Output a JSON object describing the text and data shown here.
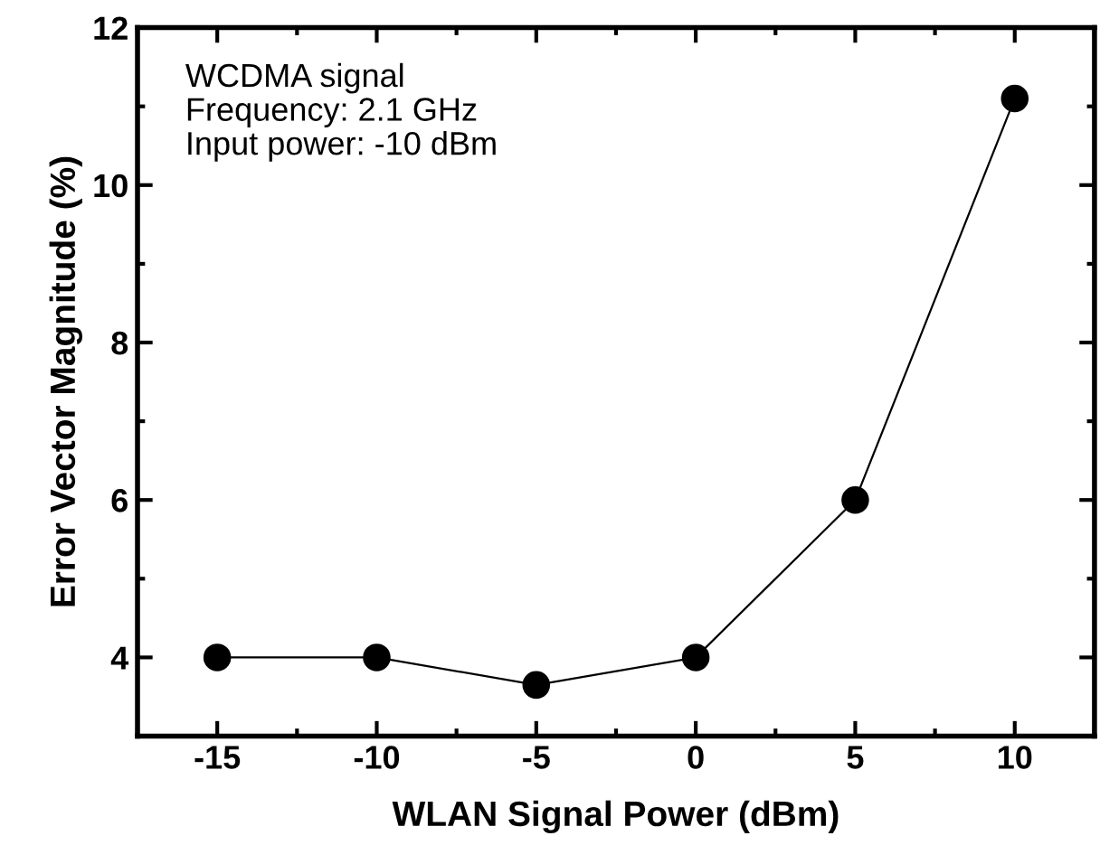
{
  "chart_data": {
    "type": "line",
    "xlabel": "WLAN Signal Power (dBm)",
    "ylabel": "Error Vector Magnitude (%)",
    "x": [
      -15,
      -10,
      -5,
      0,
      5,
      10
    ],
    "series": [
      {
        "color": "#000000",
        "values": [
          4,
          4,
          3.65,
          4,
          6,
          11.1
        ]
      }
    ],
    "marker": "circle",
    "line_style": "solid",
    "xlim": [
      -17.5,
      12.5
    ],
    "xticks": [
      -15,
      -10,
      -5,
      0,
      5,
      10
    ],
    "ylim": [
      3,
      12
    ],
    "yticks": [
      4,
      6,
      8,
      10,
      12
    ],
    "annotations": [
      "WCDMA signal\nFrequency: 2.1 GHz\nInput power: -10 dBm"
    ],
    "grid": false,
    "legend": false
  }
}
